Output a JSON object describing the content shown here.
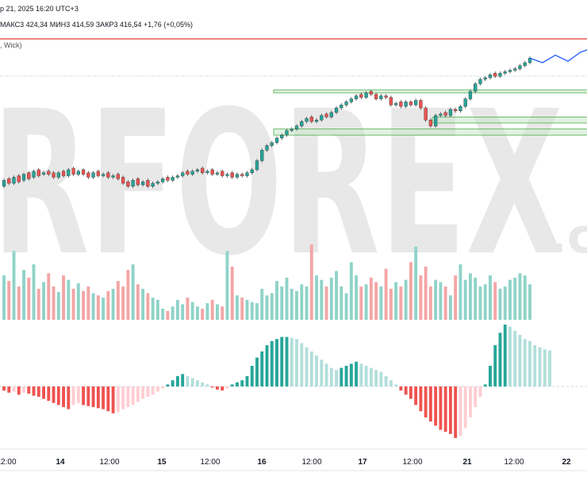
{
  "header": {
    "date_time": "р 21, 2025 16:20 UTC+3"
  },
  "ohlc": {
    "max_label": "МАКС",
    "max_value": "3 424,34",
    "min_label": "МИН",
    "min_value": "3 414,59",
    "close_label": "ЗАКР",
    "close_value": "3 416,54",
    "change": "+1,76 (+0,05%)"
  },
  "indicator_label": ", Wick)",
  "watermark": {
    "text": "RFOREX",
    "suffix": ".c"
  },
  "colors": {
    "up": "#26a69a",
    "down": "#ef5350",
    "vol_up": "#8fd3c8",
    "vol_down": "#f4a5a5",
    "macd_up_strong": "#26a69a",
    "macd_up_weak": "#b2dfdb",
    "macd_down_strong": "#ef5350",
    "macd_down_weak": "#ffcdd2",
    "resistance": "#e53935",
    "support_zone": "#4caf50",
    "forecast": "#2962ff"
  },
  "chart_data": {
    "type": "candlestick",
    "x_ticks": [
      "12:00",
      "14",
      "12:00",
      "15",
      "12:00",
      "16",
      "12:00",
      "17",
      "12:00",
      "21",
      "12:00",
      "22"
    ],
    "x_ticks_bold": [
      false,
      true,
      false,
      true,
      false,
      true,
      false,
      true,
      false,
      true,
      false,
      true
    ],
    "price_close": [
      3362,
      3360,
      3364,
      3361,
      3366,
      3363,
      3368,
      3365,
      3367,
      3366,
      3364,
      3367,
      3365,
      3369,
      3366,
      3368,
      3366,
      3364,
      3367,
      3365,
      3366,
      3364,
      3365,
      3363,
      3360,
      3358,
      3362,
      3359,
      3361,
      3358,
      3360,
      3361,
      3363,
      3362,
      3364,
      3365,
      3367,
      3366,
      3368,
      3369,
      3367,
      3368,
      3366,
      3367,
      3365,
      3366,
      3364,
      3366,
      3365,
      3367,
      3369,
      3375,
      3382,
      3385,
      3387,
      3390,
      3392,
      3395,
      3396,
      3398,
      3401,
      3403,
      3401,
      3402,
      3405,
      3404,
      3407,
      3410,
      3412,
      3414,
      3416,
      3418,
      3417,
      3420,
      3419,
      3416,
      3418,
      3417,
      3412,
      3413,
      3411,
      3414,
      3412,
      3415,
      3410,
      3402,
      3398,
      3405,
      3406,
      3405,
      3409,
      3408,
      3411,
      3416,
      3421,
      3426,
      3429,
      3430,
      3432,
      3431,
      3433,
      3434,
      3435,
      3436,
      3438,
      3440,
      3443
    ],
    "price_open": [
      3358,
      3363,
      3360,
      3365,
      3362,
      3367,
      3364,
      3369,
      3366,
      3368,
      3367,
      3364,
      3368,
      3365,
      3370,
      3366,
      3369,
      3367,
      3364,
      3368,
      3365,
      3367,
      3364,
      3366,
      3364,
      3361,
      3358,
      3363,
      3359,
      3362,
      3358,
      3360,
      3361,
      3364,
      3362,
      3364,
      3365,
      3368,
      3366,
      3368,
      3370,
      3367,
      3369,
      3366,
      3368,
      3365,
      3367,
      3364,
      3366,
      3365,
      3367,
      3369,
      3375,
      3382,
      3385,
      3387,
      3390,
      3392,
      3395,
      3396,
      3398,
      3401,
      3404,
      3401,
      3402,
      3406,
      3404,
      3407,
      3410,
      3412,
      3414,
      3416,
      3419,
      3417,
      3421,
      3419,
      3416,
      3418,
      3417,
      3412,
      3414,
      3411,
      3414,
      3412,
      3415,
      3410,
      3402,
      3398,
      3405,
      3407,
      3405,
      3409,
      3408,
      3411,
      3416,
      3421,
      3426,
      3429,
      3430,
      3433,
      3431,
      3433,
      3434,
      3435,
      3436,
      3438,
      3440
    ],
    "volume": [
      40,
      35,
      62,
      30,
      45,
      38,
      50,
      28,
      34,
      42,
      30,
      25,
      40,
      36,
      28,
      33,
      26,
      30,
      24,
      22,
      20,
      26,
      28,
      35,
      30,
      45,
      50,
      32,
      28,
      24,
      20,
      18,
      10,
      8,
      12,
      18,
      14,
      20,
      16,
      12,
      10,
      15,
      18,
      14,
      12,
      62,
      48,
      22,
      20,
      18,
      16,
      15,
      28,
      22,
      24,
      35,
      30,
      38,
      28,
      26,
      32,
      30,
      68,
      40,
      36,
      30,
      38,
      44,
      30,
      24,
      52,
      40,
      30,
      32,
      38,
      34,
      30,
      46,
      28,
      34,
      30,
      36,
      52,
      66,
      40,
      48,
      30,
      36,
      34,
      30,
      22,
      40,
      50,
      36,
      42,
      38,
      30,
      32,
      40,
      34,
      28,
      30,
      36,
      38,
      42,
      40,
      32
    ],
    "macd_hist": [
      -4,
      -6,
      -5,
      -8,
      -6,
      -7,
      -9,
      -10,
      -12,
      -14,
      -16,
      -18,
      -20,
      -22,
      -18,
      -16,
      -18,
      -19,
      -20,
      -21,
      -22,
      -24,
      -26,
      -25,
      -22,
      -20,
      -18,
      -15,
      -12,
      -10,
      -8,
      -5,
      -2,
      2,
      6,
      10,
      12,
      10,
      8,
      6,
      4,
      2,
      -1,
      -3,
      -4,
      -2,
      2,
      4,
      6,
      10,
      20,
      28,
      34,
      40,
      44,
      46,
      48,
      48,
      47,
      46,
      42,
      38,
      34,
      30,
      26,
      22,
      18,
      16,
      18,
      20,
      22,
      24,
      22,
      20,
      18,
      16,
      14,
      10,
      6,
      2,
      -4,
      -8,
      -12,
      -18,
      -24,
      -30,
      -34,
      -38,
      -42,
      -44,
      -46,
      -50,
      -48,
      -40,
      -30,
      -20,
      -10,
      2,
      20,
      40,
      52,
      60,
      58,
      54,
      50,
      46,
      44,
      40,
      38,
      36,
      35
    ]
  },
  "annotations": {
    "resistance_level": 3447,
    "support_zones": [
      [
        3420,
        3422
      ],
      [
        3400,
        3404
      ],
      [
        3392,
        3396
      ]
    ],
    "forecast_path": [
      3443,
      3440,
      3445,
      3441,
      3447,
      3450
    ]
  }
}
